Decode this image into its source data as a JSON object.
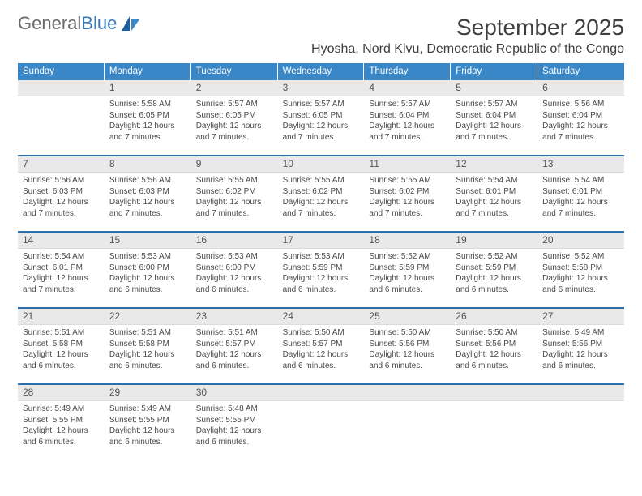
{
  "logo": {
    "primary": "General",
    "secondary": "Blue"
  },
  "colors": {
    "header_band": "#3a87c7",
    "week_divider": "#2f6ea8",
    "daynum_bg": "#e9e9e9",
    "text_dark": "#3e3e3e",
    "text_body": "#4a4a4a",
    "logo_gray": "#6a6a6a",
    "logo_blue": "#3a7ab8"
  },
  "title": "September 2025",
  "subtitle": "Hyosha, Nord Kivu, Democratic Republic of the Congo",
  "days_of_week": [
    "Sunday",
    "Monday",
    "Tuesday",
    "Wednesday",
    "Thursday",
    "Friday",
    "Saturday"
  ],
  "weeks": [
    [
      {
        "n": "",
        "lines": []
      },
      {
        "n": "1",
        "lines": [
          "Sunrise: 5:58 AM",
          "Sunset: 6:05 PM",
          "Daylight: 12 hours",
          "and 7 minutes."
        ]
      },
      {
        "n": "2",
        "lines": [
          "Sunrise: 5:57 AM",
          "Sunset: 6:05 PM",
          "Daylight: 12 hours",
          "and 7 minutes."
        ]
      },
      {
        "n": "3",
        "lines": [
          "Sunrise: 5:57 AM",
          "Sunset: 6:05 PM",
          "Daylight: 12 hours",
          "and 7 minutes."
        ]
      },
      {
        "n": "4",
        "lines": [
          "Sunrise: 5:57 AM",
          "Sunset: 6:04 PM",
          "Daylight: 12 hours",
          "and 7 minutes."
        ]
      },
      {
        "n": "5",
        "lines": [
          "Sunrise: 5:57 AM",
          "Sunset: 6:04 PM",
          "Daylight: 12 hours",
          "and 7 minutes."
        ]
      },
      {
        "n": "6",
        "lines": [
          "Sunrise: 5:56 AM",
          "Sunset: 6:04 PM",
          "Daylight: 12 hours",
          "and 7 minutes."
        ]
      }
    ],
    [
      {
        "n": "7",
        "lines": [
          "Sunrise: 5:56 AM",
          "Sunset: 6:03 PM",
          "Daylight: 12 hours",
          "and 7 minutes."
        ]
      },
      {
        "n": "8",
        "lines": [
          "Sunrise: 5:56 AM",
          "Sunset: 6:03 PM",
          "Daylight: 12 hours",
          "and 7 minutes."
        ]
      },
      {
        "n": "9",
        "lines": [
          "Sunrise: 5:55 AM",
          "Sunset: 6:02 PM",
          "Daylight: 12 hours",
          "and 7 minutes."
        ]
      },
      {
        "n": "10",
        "lines": [
          "Sunrise: 5:55 AM",
          "Sunset: 6:02 PM",
          "Daylight: 12 hours",
          "and 7 minutes."
        ]
      },
      {
        "n": "11",
        "lines": [
          "Sunrise: 5:55 AM",
          "Sunset: 6:02 PM",
          "Daylight: 12 hours",
          "and 7 minutes."
        ]
      },
      {
        "n": "12",
        "lines": [
          "Sunrise: 5:54 AM",
          "Sunset: 6:01 PM",
          "Daylight: 12 hours",
          "and 7 minutes."
        ]
      },
      {
        "n": "13",
        "lines": [
          "Sunrise: 5:54 AM",
          "Sunset: 6:01 PM",
          "Daylight: 12 hours",
          "and 7 minutes."
        ]
      }
    ],
    [
      {
        "n": "14",
        "lines": [
          "Sunrise: 5:54 AM",
          "Sunset: 6:01 PM",
          "Daylight: 12 hours",
          "and 7 minutes."
        ]
      },
      {
        "n": "15",
        "lines": [
          "Sunrise: 5:53 AM",
          "Sunset: 6:00 PM",
          "Daylight: 12 hours",
          "and 6 minutes."
        ]
      },
      {
        "n": "16",
        "lines": [
          "Sunrise: 5:53 AM",
          "Sunset: 6:00 PM",
          "Daylight: 12 hours",
          "and 6 minutes."
        ]
      },
      {
        "n": "17",
        "lines": [
          "Sunrise: 5:53 AM",
          "Sunset: 5:59 PM",
          "Daylight: 12 hours",
          "and 6 minutes."
        ]
      },
      {
        "n": "18",
        "lines": [
          "Sunrise: 5:52 AM",
          "Sunset: 5:59 PM",
          "Daylight: 12 hours",
          "and 6 minutes."
        ]
      },
      {
        "n": "19",
        "lines": [
          "Sunrise: 5:52 AM",
          "Sunset: 5:59 PM",
          "Daylight: 12 hours",
          "and 6 minutes."
        ]
      },
      {
        "n": "20",
        "lines": [
          "Sunrise: 5:52 AM",
          "Sunset: 5:58 PM",
          "Daylight: 12 hours",
          "and 6 minutes."
        ]
      }
    ],
    [
      {
        "n": "21",
        "lines": [
          "Sunrise: 5:51 AM",
          "Sunset: 5:58 PM",
          "Daylight: 12 hours",
          "and 6 minutes."
        ]
      },
      {
        "n": "22",
        "lines": [
          "Sunrise: 5:51 AM",
          "Sunset: 5:58 PM",
          "Daylight: 12 hours",
          "and 6 minutes."
        ]
      },
      {
        "n": "23",
        "lines": [
          "Sunrise: 5:51 AM",
          "Sunset: 5:57 PM",
          "Daylight: 12 hours",
          "and 6 minutes."
        ]
      },
      {
        "n": "24",
        "lines": [
          "Sunrise: 5:50 AM",
          "Sunset: 5:57 PM",
          "Daylight: 12 hours",
          "and 6 minutes."
        ]
      },
      {
        "n": "25",
        "lines": [
          "Sunrise: 5:50 AM",
          "Sunset: 5:56 PM",
          "Daylight: 12 hours",
          "and 6 minutes."
        ]
      },
      {
        "n": "26",
        "lines": [
          "Sunrise: 5:50 AM",
          "Sunset: 5:56 PM",
          "Daylight: 12 hours",
          "and 6 minutes."
        ]
      },
      {
        "n": "27",
        "lines": [
          "Sunrise: 5:49 AM",
          "Sunset: 5:56 PM",
          "Daylight: 12 hours",
          "and 6 minutes."
        ]
      }
    ],
    [
      {
        "n": "28",
        "lines": [
          "Sunrise: 5:49 AM",
          "Sunset: 5:55 PM",
          "Daylight: 12 hours",
          "and 6 minutes."
        ]
      },
      {
        "n": "29",
        "lines": [
          "Sunrise: 5:49 AM",
          "Sunset: 5:55 PM",
          "Daylight: 12 hours",
          "and 6 minutes."
        ]
      },
      {
        "n": "30",
        "lines": [
          "Sunrise: 5:48 AM",
          "Sunset: 5:55 PM",
          "Daylight: 12 hours",
          "and 6 minutes."
        ]
      },
      {
        "n": "",
        "lines": []
      },
      {
        "n": "",
        "lines": []
      },
      {
        "n": "",
        "lines": []
      },
      {
        "n": "",
        "lines": []
      }
    ]
  ]
}
